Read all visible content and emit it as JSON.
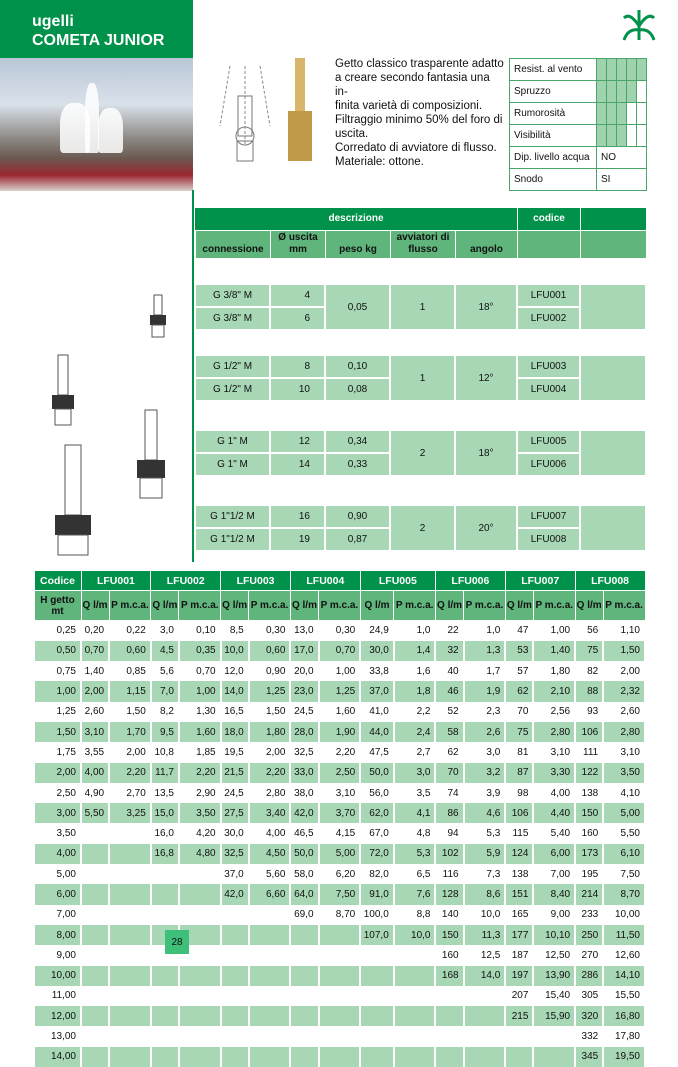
{
  "header": {
    "category": "ugelli",
    "title": "COMETA JUNIOR"
  },
  "colors": {
    "brand": "#00914a",
    "light": "#a7d7b5",
    "mid": "#5fb57c"
  },
  "logo": "fountain-logo-icon",
  "description": [
    "Getto classico trasparente adatto",
    "a creare secondo fantasia una in-",
    "finita varietà di composizioni.",
    "Filtraggio minimo 50% del foro di",
    "uscita.",
    "Corredato di avviatore di flusso.",
    "Materiale: ottone."
  ],
  "ratings": [
    {
      "label": "Resist. al vento",
      "level": 5,
      "max": 5
    },
    {
      "label": "Spruzzo",
      "level": 4,
      "max": 5
    },
    {
      "label": "Rumorosità",
      "level": 3,
      "max": 5
    },
    {
      "label": "Visibilità",
      "level": 3,
      "max": 5
    }
  ],
  "properties": [
    {
      "label": "Dip. livello acqua",
      "value": "NO"
    },
    {
      "label": "Snodo",
      "value": "SI"
    }
  ],
  "product_table": {
    "header_desc": "descrizione",
    "header_code": "codice",
    "columns": [
      "connessione",
      "Ø uscita mm",
      "peso kg",
      "avviatori di flusso",
      "angolo"
    ],
    "groups": [
      {
        "rows": [
          {
            "conn": "G 3/8\" M",
            "uscita": "4",
            "code": "LFU001"
          },
          {
            "conn": "G 3/8\" M",
            "uscita": "6",
            "code": "LFU002"
          }
        ],
        "peso": [
          "0,05"
        ],
        "avviatori": "1",
        "angolo": "18°"
      },
      {
        "rows": [
          {
            "conn": "G 1/2\" M",
            "uscita": "8",
            "code": "LFU003"
          },
          {
            "conn": "G 1/2\" M",
            "uscita": "10",
            "code": "LFU004"
          }
        ],
        "peso": [
          "0,10",
          "0,08"
        ],
        "avviatori": "1",
        "angolo": "12°"
      },
      {
        "rows": [
          {
            "conn": "G 1\" M",
            "uscita": "12",
            "code": "LFU005"
          },
          {
            "conn": "G 1\" M",
            "uscita": "14",
            "code": "LFU006"
          }
        ],
        "peso": [
          "0,34",
          "0,33"
        ],
        "avviatori": "2",
        "angolo": "18°"
      },
      {
        "rows": [
          {
            "conn": "G 1\"1/2 M",
            "uscita": "16",
            "code": "LFU007"
          },
          {
            "conn": "G 1\"1/2 M",
            "uscita": "19",
            "code": "LFU008"
          }
        ],
        "peso": [
          "0,90",
          "0,87"
        ],
        "avviatori": "2",
        "angolo": "20°"
      }
    ]
  },
  "perf_table": {
    "codice_label": "Codice",
    "hgetto_label": "H getto mt",
    "q_label": "Q l/m",
    "p_label": "P m.c.a.",
    "codes": [
      "LFU001",
      "LFU002",
      "LFU003",
      "LFU004",
      "LFU005",
      "LFU006",
      "LFU007",
      "LFU008"
    ],
    "rows": [
      [
        "0,25",
        "0,20",
        "0,22",
        "3,0",
        "0,10",
        "8,5",
        "0,30",
        "13,0",
        "0,30",
        "24,9",
        "1,0",
        "22",
        "1,0",
        "47",
        "1,00",
        "56",
        "1,10"
      ],
      [
        "0,50",
        "0,70",
        "0,60",
        "4,5",
        "0,35",
        "10,0",
        "0,60",
        "17,0",
        "0,70",
        "30,0",
        "1,4",
        "32",
        "1,3",
        "53",
        "1,40",
        "75",
        "1,50"
      ],
      [
        "0,75",
        "1,40",
        "0,85",
        "5,6",
        "0,70",
        "12,0",
        "0,90",
        "20,0",
        "1,00",
        "33,8",
        "1,6",
        "40",
        "1,7",
        "57",
        "1,80",
        "82",
        "2,00"
      ],
      [
        "1,00",
        "2,00",
        "1,15",
        "7,0",
        "1,00",
        "14,0",
        "1,25",
        "23,0",
        "1,25",
        "37,0",
        "1,8",
        "46",
        "1,9",
        "62",
        "2,10",
        "88",
        "2,32"
      ],
      [
        "1,25",
        "2,60",
        "1,50",
        "8,2",
        "1,30",
        "16,5",
        "1,50",
        "24,5",
        "1,60",
        "41,0",
        "2,2",
        "52",
        "2,3",
        "70",
        "2,56",
        "93",
        "2,60"
      ],
      [
        "1,50",
        "3,10",
        "1,70",
        "9,5",
        "1,60",
        "18,0",
        "1,80",
        "28,0",
        "1,90",
        "44,0",
        "2,4",
        "58",
        "2,6",
        "75",
        "2,80",
        "106",
        "2,80"
      ],
      [
        "1,75",
        "3,55",
        "2,00",
        "10,8",
        "1,85",
        "19,5",
        "2,00",
        "32,5",
        "2,20",
        "47,5",
        "2,7",
        "62",
        "3,0",
        "81",
        "3,10",
        "111",
        "3,10"
      ],
      [
        "2,00",
        "4,00",
        "2,20",
        "11,7",
        "2,20",
        "21,5",
        "2,20",
        "33,0",
        "2,50",
        "50,0",
        "3,0",
        "70",
        "3,2",
        "87",
        "3,30",
        "122",
        "3,50"
      ],
      [
        "2,50",
        "4,90",
        "2,70",
        "13,5",
        "2,90",
        "24,5",
        "2,80",
        "38,0",
        "3,10",
        "56,0",
        "3,5",
        "74",
        "3,9",
        "98",
        "4,00",
        "138",
        "4,10"
      ],
      [
        "3,00",
        "5,50",
        "3,25",
        "15,0",
        "3,50",
        "27,5",
        "3,40",
        "42,0",
        "3,70",
        "62,0",
        "4,1",
        "86",
        "4,6",
        "106",
        "4,40",
        "150",
        "5,00"
      ],
      [
        "3,50",
        "",
        "",
        "16,0",
        "4,20",
        "30,0",
        "4,00",
        "46,5",
        "4,15",
        "67,0",
        "4,8",
        "94",
        "5,3",
        "115",
        "5,40",
        "160",
        "5,50"
      ],
      [
        "4,00",
        "",
        "",
        "16,8",
        "4,80",
        "32,5",
        "4,50",
        "50,0",
        "5,00",
        "72,0",
        "5,3",
        "102",
        "5,9",
        "124",
        "6,00",
        "173",
        "6,10"
      ],
      [
        "5,00",
        "",
        "",
        "",
        "",
        "37,0",
        "5,60",
        "58,0",
        "6,20",
        "82,0",
        "6,5",
        "116",
        "7,3",
        "138",
        "7,00",
        "195",
        "7,50"
      ],
      [
        "6,00",
        "",
        "",
        "",
        "",
        "42,0",
        "6,60",
        "64,0",
        "7,50",
        "91,0",
        "7,6",
        "128",
        "8,6",
        "151",
        "8,40",
        "214",
        "8,70"
      ],
      [
        "7,00",
        "",
        "",
        "",
        "",
        "",
        "",
        "69,0",
        "8,70",
        "100,0",
        "8,8",
        "140",
        "10,0",
        "165",
        "9,00",
        "233",
        "10,00"
      ],
      [
        "8,00",
        "",
        "",
        "",
        "",
        "",
        "",
        "",
        "",
        "107,0",
        "10,0",
        "150",
        "11,3",
        "177",
        "10,10",
        "250",
        "11,50"
      ],
      [
        "9,00",
        "",
        "",
        "",
        "",
        "",
        "",
        "",
        "",
        "",
        "",
        "160",
        "12,5",
        "187",
        "12,50",
        "270",
        "12,60"
      ],
      [
        "10,00",
        "",
        "",
        "",
        "",
        "",
        "",
        "",
        "",
        "",
        "",
        "168",
        "14,0",
        "197",
        "13,90",
        "286",
        "14,10"
      ],
      [
        "11,00",
        "",
        "",
        "",
        "",
        "",
        "",
        "",
        "",
        "",
        "",
        "",
        "",
        "207",
        "15,40",
        "305",
        "15,50"
      ],
      [
        "12,00",
        "",
        "",
        "",
        "",
        "",
        "",
        "",
        "",
        "",
        "",
        "",
        "",
        "215",
        "15,90",
        "320",
        "16,80"
      ],
      [
        "13,00",
        "",
        "",
        "",
        "",
        "",
        "",
        "",
        "",
        "",
        "",
        "",
        "",
        "",
        "",
        "332",
        "17,80"
      ],
      [
        "14,00",
        "",
        "",
        "",
        "",
        "",
        "",
        "",
        "",
        "",
        "",
        "",
        "",
        "",
        "",
        "345",
        "19,50"
      ]
    ]
  },
  "page_number": "28"
}
